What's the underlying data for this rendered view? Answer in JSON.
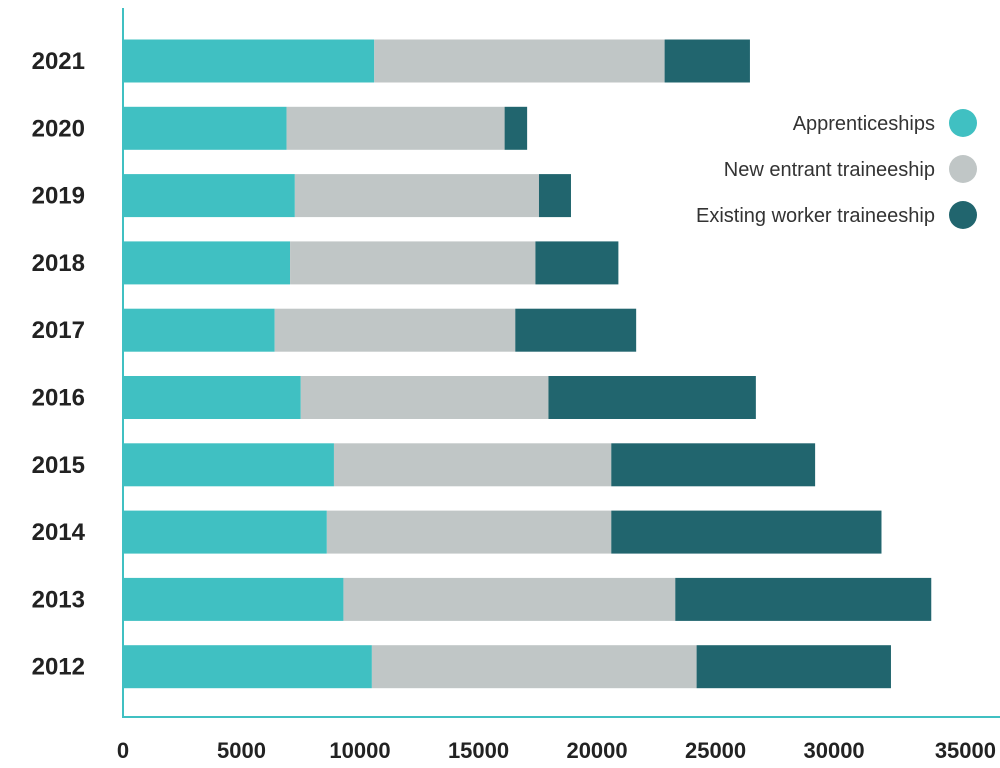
{
  "chart_data": {
    "type": "bar",
    "orientation": "horizontal",
    "stacked": true,
    "title": "",
    "xlabel": "",
    "ylabel": "",
    "categories": [
      "2021",
      "2020",
      "2019",
      "2018",
      "2017",
      "2016",
      "2015",
      "2014",
      "2013",
      "2012"
    ],
    "series": [
      {
        "name": "Apprenticeships",
        "color": "#40c0c2",
        "values": [
          10600,
          6900,
          7250,
          7050,
          6400,
          7500,
          8900,
          8600,
          9300,
          10500
        ]
      },
      {
        "name": "New entrant traineeship",
        "color": "#c0c6c6",
        "values": [
          12250,
          9200,
          10300,
          10350,
          10150,
          10450,
          11700,
          12000,
          14000,
          13700
        ]
      },
      {
        "name": "Existing worker traineeship",
        "color": "#21656e",
        "values": [
          3600,
          950,
          1350,
          3500,
          5100,
          8750,
          8600,
          11400,
          10800,
          8200
        ]
      }
    ],
    "xlim": [
      0,
      37000
    ],
    "xticks": [
      "0",
      "5000",
      "10000",
      "15000",
      "20000",
      "25000",
      "30000",
      "35000"
    ],
    "grid": false,
    "legend_position": "top-right",
    "axis_color": "#40c0c2"
  }
}
